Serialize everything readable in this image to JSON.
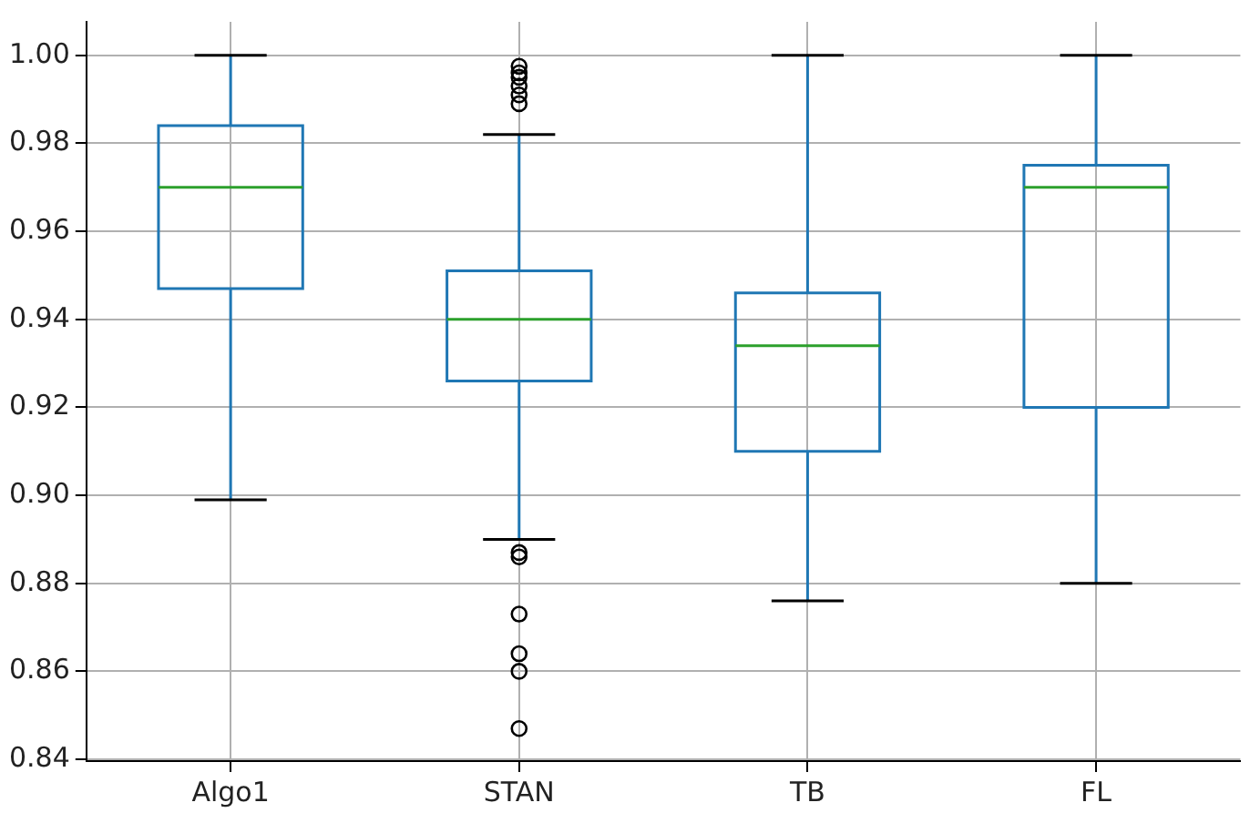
{
  "chart_data": {
    "type": "box",
    "categories": [
      "Algo1",
      "STAN",
      "TB",
      "FL"
    ],
    "series": [
      {
        "color": "#1f77b4",
        "boxes": [
          {
            "low": 0.899,
            "q1": 0.947,
            "median": 0.97,
            "q3": 0.984,
            "high": 1.0
          },
          {
            "low": 0.89,
            "q1": 0.926,
            "median": 0.94,
            "q3": 0.951,
            "high": 0.982,
            "outliers": [
              0.9975,
              0.996,
              0.995,
              0.993,
              0.991,
              0.989,
              0.887,
              0.886,
              0.873,
              0.864,
              0.86,
              0.847
            ]
          },
          {
            "low": 0.876,
            "q1": 0.91,
            "median": 0.934,
            "q3": 0.946,
            "high": 1.0
          },
          {
            "low": 0.88,
            "q1": 0.92,
            "median": 0.97,
            "q3": 0.975,
            "high": 1.0
          }
        ]
      }
    ],
    "ylim": [
      0.8396,
      1.0076
    ],
    "yticks": [
      0.84,
      0.86,
      0.88,
      {
        "value": 0.9,
        "label": "0.90"
      },
      0.92,
      0.94,
      0.96,
      0.98,
      {
        "value": 1,
        "label": "1.00"
      }
    ],
    "grid": true,
    "legend": false
  }
}
